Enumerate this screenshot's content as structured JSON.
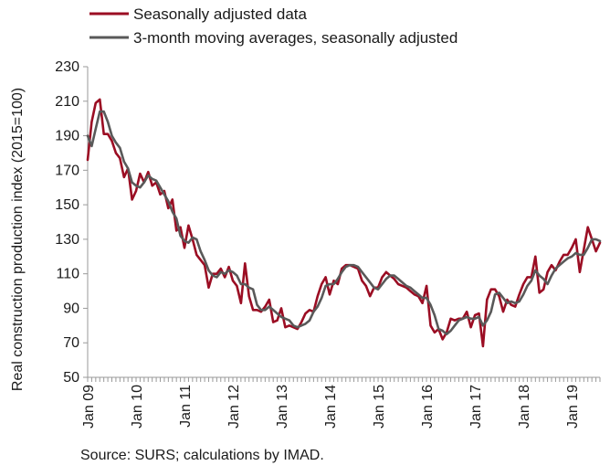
{
  "chart_data": {
    "type": "line",
    "ylabel": "Real construction production index (2015=100)",
    "ylim": [
      50,
      230
    ],
    "yticks": [
      50,
      70,
      90,
      110,
      130,
      150,
      170,
      190,
      210,
      230
    ],
    "x_tick_labels": [
      "Jan 09",
      "Jan 10",
      "Jan 11",
      "Jan 12",
      "Jan 13",
      "Jan 14",
      "Jan 15",
      "Jan 16",
      "Jan 17",
      "Jan 18",
      "Jan 19"
    ],
    "x_start": "Jan 2009",
    "x_end": "May 2019",
    "legend_position": "top-left",
    "series": [
      {
        "name": "Seasonally adjusted data",
        "color": "#9b0d23",
        "values": [
          176,
          198,
          209,
          211,
          191,
          191,
          187,
          180,
          177,
          166,
          171,
          153,
          158,
          168,
          163,
          169,
          161,
          163,
          156,
          158,
          148,
          153,
          135,
          137,
          125,
          138,
          130,
          121,
          118,
          115,
          102,
          110,
          110,
          113,
          108,
          114,
          106,
          103,
          93,
          116,
          97,
          89,
          89,
          88,
          91,
          95,
          82,
          83,
          90,
          79,
          80,
          79,
          78,
          82,
          87,
          89,
          88,
          97,
          104,
          108,
          98,
          106,
          104,
          113,
          115,
          115,
          114,
          113,
          106,
          103,
          97,
          102,
          102,
          108,
          111,
          109,
          107,
          104,
          103,
          102,
          100,
          98,
          97,
          93,
          103,
          80,
          76,
          78,
          72,
          76,
          84,
          83,
          84,
          84,
          88,
          79,
          86,
          87,
          68,
          95,
          101,
          101,
          97,
          88,
          95,
          92,
          91,
          98,
          104,
          108,
          108,
          120,
          99,
          101,
          111,
          115,
          112,
          117,
          121,
          121,
          125,
          130,
          111,
          124,
          137,
          130,
          123,
          128
        ]
      },
      {
        "name": "3-month moving averages, seasonally adjusted",
        "color": "#595959",
        "values": [
          190,
          184,
          194,
          204,
          204,
          198,
          190,
          186,
          183,
          175,
          171,
          163,
          161,
          160,
          163,
          167,
          165,
          164,
          160,
          156,
          152,
          146,
          142,
          132,
          129,
          128,
          131,
          130,
          123,
          118,
          112,
          109,
          108,
          111,
          110,
          112,
          111,
          109,
          104,
          104,
          102,
          101,
          92,
          89,
          89,
          91,
          89,
          87,
          85,
          84,
          83,
          80,
          79,
          80,
          81,
          83,
          88,
          91,
          96,
          103,
          104,
          104,
          107,
          111,
          114,
          115,
          115,
          114,
          111,
          108,
          105,
          102,
          101,
          104,
          107,
          109,
          109,
          107,
          105,
          103,
          102,
          100,
          98,
          96,
          96,
          92,
          86,
          78,
          77,
          75,
          77,
          80,
          83,
          84,
          85,
          84,
          84,
          85,
          80,
          83,
          88,
          98,
          99,
          96,
          93,
          94,
          93,
          94,
          98,
          103,
          106,
          112,
          109,
          107,
          104,
          109,
          113,
          115,
          117,
          119,
          120,
          122,
          121,
          121,
          125,
          130,
          130,
          129
        ]
      }
    ]
  },
  "source_text": "Source: SURS; calculations by IMAD."
}
